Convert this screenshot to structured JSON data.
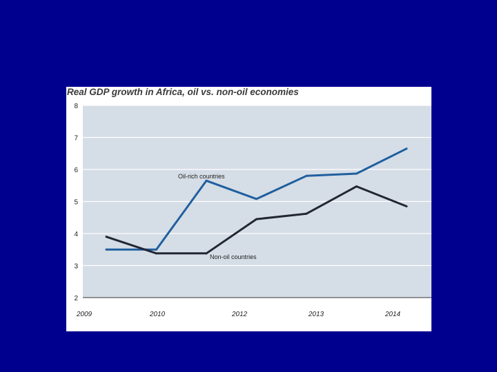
{
  "chart_data": {
    "type": "line",
    "title": "Real GDP growth in Africa, oil vs. non-oil economies",
    "xlabel": "",
    "ylabel": "",
    "x_tick_labels": [
      "2009",
      "2010",
      "2012",
      "2013",
      "2014"
    ],
    "x": [
      2009,
      2010,
      2011,
      2012,
      2013,
      2014,
      2015
    ],
    "y_ticks": [
      2,
      3,
      4,
      5,
      6,
      7,
      8
    ],
    "ylim": [
      2,
      8
    ],
    "grid": true,
    "legend": "none",
    "series": [
      {
        "name": "Oil-rich countries",
        "color": "#1f5f9e",
        "values": [
          3.5,
          3.5,
          5.65,
          5.08,
          5.8,
          5.87,
          6.65
        ]
      },
      {
        "name": "Non-oil countries",
        "color": "#222633",
        "values": [
          3.9,
          3.38,
          3.38,
          4.45,
          4.62,
          5.47,
          4.85
        ]
      }
    ],
    "colors": {
      "plot_background": "#d5dde6",
      "gridline": "#ffffff",
      "page_background": "#00008f"
    }
  }
}
